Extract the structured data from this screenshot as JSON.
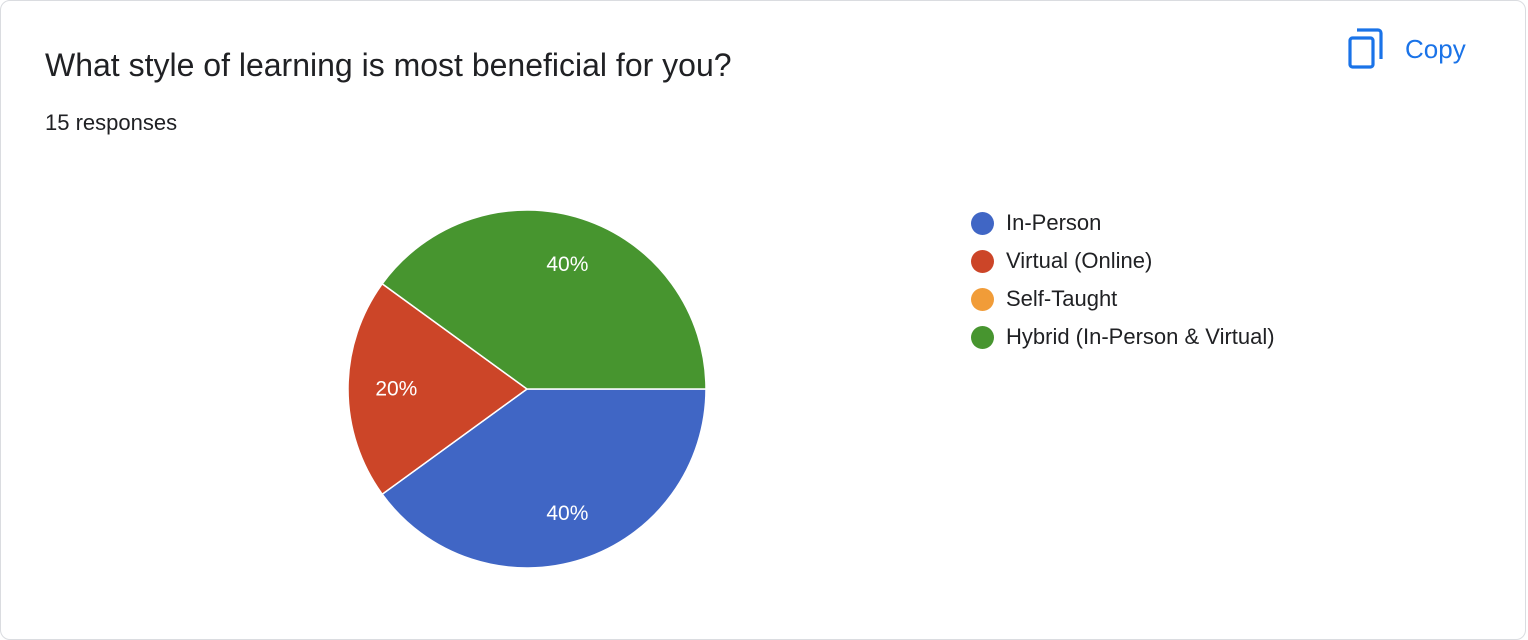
{
  "question": {
    "title": "What style of learning is most beneficial for you?",
    "response_count": "15 responses"
  },
  "toolbar": {
    "copy_label": "Copy",
    "copy_icon": "copy-icon",
    "accent_color": "#1a73e8"
  },
  "chart_data": {
    "type": "pie",
    "categories": [
      "In-Person",
      "Virtual (Online)",
      "Self-Taught",
      "Hybrid (In-Person & Virtual)"
    ],
    "values": [
      40,
      20,
      0,
      40
    ],
    "value_labels": [
      "40%",
      "20%",
      "",
      "40%"
    ],
    "colors": [
      "#4066c5",
      "#cc4528",
      "#f19c38",
      "#47952f"
    ],
    "legend_position": "right"
  }
}
